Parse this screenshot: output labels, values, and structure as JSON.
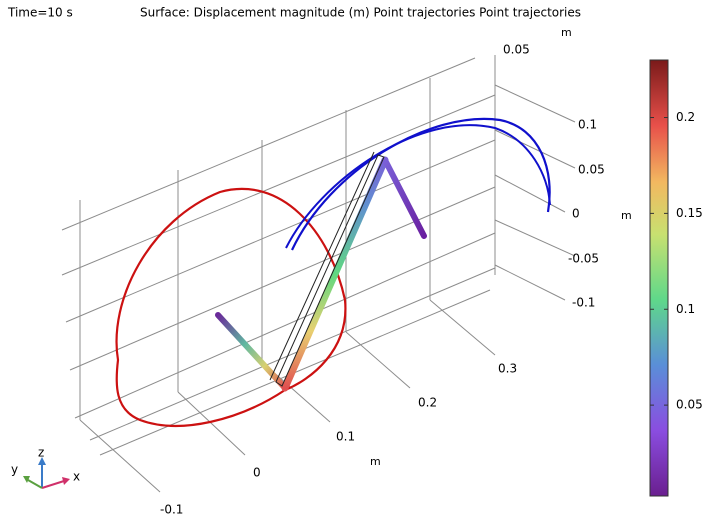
{
  "header": {
    "time_label": "Time=10 s",
    "title": "Surface: Displacement magnitude (m) Point trajectories Point trajectories"
  },
  "axes": {
    "x": {
      "ticks": [
        -0.1,
        0,
        0.1,
        0.2,
        0.3
      ],
      "unit": "m"
    },
    "y": {
      "ticks": [
        0.1,
        0.05,
        0,
        -0.05,
        -0.1
      ],
      "unit": "m"
    },
    "z": {
      "ticks": [
        0.05
      ],
      "unit": "m"
    }
  },
  "triad": {
    "x": "x",
    "y": "y",
    "z": "z"
  },
  "colorbar": {
    "range": [
      0.0026,
      0.23
    ],
    "ticks": [
      0.05,
      0.1,
      0.15,
      0.2
    ]
  }
}
